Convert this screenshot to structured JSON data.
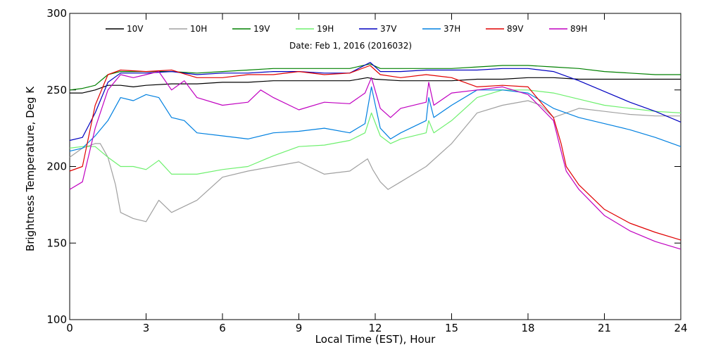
{
  "chart_data": {
    "type": "line",
    "subtitle": "Date: Feb  1, 2016 (2016032)",
    "xlabel": "Local Time (EST), Hour",
    "ylabel": "Brightness Temperature, Deg K",
    "xlim": [
      0,
      24
    ],
    "ylim": [
      100,
      300
    ],
    "xticks": [
      0,
      3,
      6,
      9,
      12,
      15,
      18,
      21,
      24
    ],
    "yticks": [
      100,
      150,
      200,
      250,
      300
    ],
    "xtick_labels": [
      "0",
      "3",
      "6",
      "9",
      "12",
      "15",
      "18",
      "21",
      "24"
    ],
    "ytick_labels": [
      "100",
      "150",
      "200",
      "250",
      "300"
    ],
    "grid": false,
    "legend_position": "top",
    "series": [
      {
        "name": "10V",
        "color": "#000000",
        "x": [
          0,
          0.5,
          1,
          1.5,
          2,
          2.5,
          3,
          4,
          5,
          6,
          7,
          8,
          9,
          10,
          11,
          11.7,
          12,
          13,
          14,
          15,
          16,
          17,
          18,
          19,
          20,
          21,
          22,
          23,
          24
        ],
        "y": [
          248,
          248,
          250,
          253,
          253,
          252,
          253,
          254,
          254,
          255,
          255,
          256,
          256,
          256,
          256,
          258,
          257,
          256,
          256,
          256,
          257,
          257,
          258,
          258,
          257,
          257,
          257,
          257,
          257
        ]
      },
      {
        "name": "10H",
        "color": "#a0a0a0",
        "x": [
          0,
          0.5,
          1,
          1.2,
          1.5,
          1.8,
          2,
          2.5,
          3,
          3.5,
          4,
          5,
          6,
          7,
          8,
          9,
          10,
          11,
          11.7,
          11.9,
          12.2,
          12.5,
          13,
          14,
          15,
          16,
          17,
          18,
          18.5,
          19,
          20,
          21,
          22,
          23,
          24
        ],
        "y": [
          206,
          212,
          215,
          215,
          206,
          188,
          170,
          166,
          164,
          178,
          170,
          178,
          193,
          197,
          200,
          203,
          195,
          197,
          205,
          198,
          190,
          185,
          190,
          200,
          215,
          235,
          240,
          243,
          240,
          232,
          238,
          236,
          234,
          233,
          233
        ]
      },
      {
        "name": "19V",
        "color": "#008000",
        "x": [
          0,
          0.5,
          1,
          1.5,
          2,
          3,
          4,
          5,
          6,
          7,
          8,
          9,
          10,
          11,
          11.8,
          12.2,
          13,
          14,
          15,
          16,
          17,
          18,
          19,
          20,
          21,
          22,
          23,
          24
        ],
        "y": [
          250,
          251,
          253,
          260,
          262,
          262,
          262,
          261,
          262,
          263,
          264,
          264,
          264,
          264,
          267,
          264,
          264,
          264,
          264,
          265,
          266,
          266,
          265,
          264,
          262,
          261,
          260,
          260
        ]
      },
      {
        "name": "19H",
        "color": "#6ef06e",
        "x": [
          0,
          0.5,
          1,
          1.5,
          2,
          2.5,
          3,
          3.5,
          4,
          5,
          6,
          7,
          8,
          9,
          10,
          11,
          11.6,
          11.85,
          12.2,
          12.6,
          13,
          14,
          14.1,
          14.3,
          15,
          16,
          17,
          18,
          19,
          20,
          21,
          22,
          23,
          24
        ],
        "y": [
          212,
          213,
          213,
          206,
          200,
          200,
          198,
          204,
          195,
          195,
          198,
          200,
          207,
          213,
          214,
          217,
          222,
          235,
          220,
          215,
          218,
          222,
          230,
          222,
          230,
          245,
          250,
          250,
          248,
          244,
          240,
          238,
          236,
          235
        ]
      },
      {
        "name": "37V",
        "color": "#0000c0",
        "x": [
          0,
          0.5,
          1,
          1.5,
          2,
          3,
          4,
          5,
          6,
          7,
          8,
          9,
          10,
          11,
          11.8,
          12.2,
          13,
          14,
          15,
          16,
          17,
          18,
          19,
          20,
          21,
          22,
          23,
          24
        ],
        "y": [
          217,
          219,
          235,
          255,
          261,
          261,
          262,
          260,
          261,
          261,
          262,
          262,
          261,
          261,
          268,
          262,
          262,
          263,
          263,
          263,
          264,
          264,
          262,
          256,
          249,
          242,
          236,
          229
        ]
      },
      {
        "name": "37H",
        "color": "#0080e0",
        "x": [
          0,
          0.5,
          1,
          1.5,
          2,
          2.5,
          3,
          3.5,
          4,
          4.5,
          5,
          6,
          7,
          8,
          9,
          10,
          11,
          11.6,
          11.85,
          12.2,
          12.6,
          13,
          14,
          14.1,
          14.3,
          15,
          16,
          17,
          18,
          19,
          20,
          21,
          22,
          23,
          24
        ],
        "y": [
          210,
          212,
          220,
          230,
          245,
          243,
          247,
          245,
          232,
          230,
          222,
          220,
          218,
          222,
          223,
          225,
          222,
          228,
          252,
          225,
          218,
          222,
          230,
          245,
          232,
          240,
          250,
          250,
          248,
          238,
          232,
          228,
          224,
          219,
          213
        ]
      },
      {
        "name": "89V",
        "color": "#e00000",
        "x": [
          0,
          0.5,
          1,
          1.5,
          2,
          3,
          4,
          5,
          6,
          7,
          8,
          9,
          10,
          11,
          11.8,
          12.2,
          13,
          14,
          15,
          16,
          17,
          18,
          19,
          19.3,
          19.5,
          20,
          21,
          22,
          23,
          24
        ],
        "y": [
          197,
          200,
          240,
          260,
          263,
          262,
          263,
          258,
          258,
          260,
          260,
          262,
          260,
          261,
          266,
          260,
          258,
          260,
          258,
          252,
          253,
          252,
          232,
          215,
          200,
          188,
          172,
          163,
          157,
          152
        ]
      },
      {
        "name": "89H",
        "color": "#c000c0",
        "x": [
          0,
          0.5,
          1,
          1.5,
          2,
          2.5,
          3,
          3.5,
          4,
          4.5,
          5,
          6,
          7,
          7.5,
          8,
          9,
          10,
          11,
          11.6,
          11.85,
          12.2,
          12.6,
          13,
          14,
          14.1,
          14.3,
          15,
          16,
          17,
          18,
          19,
          19.3,
          19.5,
          20,
          21,
          22,
          23,
          24
        ],
        "y": [
          185,
          190,
          225,
          250,
          260,
          258,
          260,
          262,
          250,
          256,
          245,
          240,
          242,
          250,
          245,
          237,
          242,
          241,
          248,
          258,
          238,
          232,
          238,
          242,
          255,
          240,
          248,
          250,
          252,
          247,
          230,
          210,
          197,
          185,
          168,
          158,
          151,
          146
        ]
      }
    ]
  }
}
